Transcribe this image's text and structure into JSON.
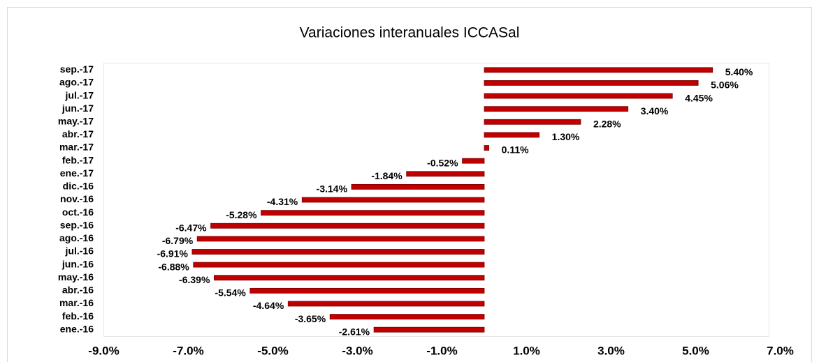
{
  "chart_data": {
    "type": "bar",
    "orientation": "horizontal",
    "title": "Variaciones interanuales ICCASal",
    "categories": [
      "sep.-17",
      "ago.-17",
      "jul.-17",
      "jun.-17",
      "may.-17",
      "abr.-17",
      "mar.-17",
      "feb.-17",
      "ene.-17",
      "dic.-16",
      "nov.-16",
      "oct.-16",
      "sep.-16",
      "ago.-16",
      "jul.-16",
      "jun.-16",
      "may.-16",
      "abr.-16",
      "mar.-16",
      "feb.-16",
      "ene.-16"
    ],
    "values": [
      5.4,
      5.06,
      4.45,
      3.4,
      2.28,
      1.3,
      0.11,
      -0.52,
      -1.84,
      -3.14,
      -4.31,
      -5.28,
      -6.47,
      -6.79,
      -6.91,
      -6.88,
      -6.39,
      -5.54,
      -4.64,
      -3.65,
      -2.61
    ],
    "value_labels": [
      "5.40%",
      "5.06%",
      "4.45%",
      "3.40%",
      "2.28%",
      "1.30%",
      "0.11%",
      "-0.52%",
      "-1.84%",
      "-3.14%",
      "-4.31%",
      "-5.28%",
      "-6.47%",
      "-6.79%",
      "-6.91%",
      "-6.88%",
      "-6.39%",
      "-5.54%",
      "-4.64%",
      "-3.65%",
      "-2.61%"
    ],
    "color": "#c00000",
    "xlim": [
      -9,
      7
    ],
    "xticks": [
      {
        "value": -9,
        "label": "-9.0%"
      },
      {
        "value": -7,
        "label": "-7.0%"
      },
      {
        "value": -5,
        "label": "-5.0%"
      },
      {
        "value": -3,
        "label": "-3.0%"
      },
      {
        "value": -1,
        "label": "-1.0%"
      },
      {
        "value": 1,
        "label": "1.0%"
      },
      {
        "value": 3,
        "label": "3.0%"
      },
      {
        "value": 5,
        "label": "5.0%"
      },
      {
        "value": 7,
        "label": "7.0%"
      }
    ],
    "grid": false
  }
}
